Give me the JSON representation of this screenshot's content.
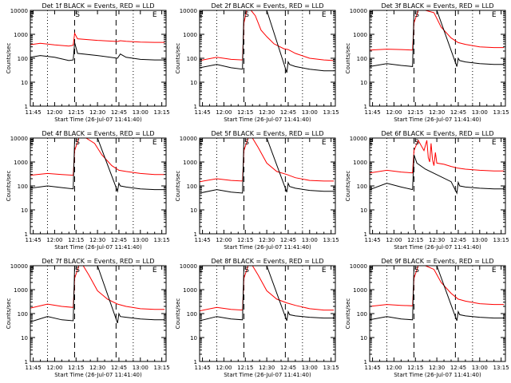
{
  "chart_data": [
    {
      "type": "line",
      "title": "Det 1f BLACK = Events, RED = LLD",
      "ylabel": "Counts/sec",
      "xlabel": "Start Time (26-Jul-07 11:41:40)",
      "y_scale": "log",
      "ylim": [
        1,
        10000
      ],
      "y_ticks": [
        "1",
        "10",
        "100",
        "1000",
        "10000"
      ],
      "x_ticks": [
        "11:45",
        "12:00",
        "12:15",
        "12:30",
        "12:45",
        "13:00",
        "13:15"
      ],
      "markers": [
        "E",
        "S",
        "E"
      ],
      "series": [
        {
          "color": "#ff0000",
          "x": [
            "11:43",
            "11:50",
            "12:00",
            "12:10",
            "12:13",
            "12:14",
            "12:16",
            "12:30",
            "12:44",
            "12:46",
            "12:50",
            "13:00",
            "13:10",
            "13:17"
          ],
          "values": [
            370,
            420,
            360,
            320,
            350,
            1100,
            650,
            560,
            500,
            540,
            510,
            470,
            460,
            460
          ]
        },
        {
          "color": "#000000",
          "x": [
            "11:43",
            "11:50",
            "12:00",
            "12:10",
            "12:13",
            "12:14",
            "12:16",
            "12:30",
            "12:44",
            "12:46",
            "12:50",
            "13:00",
            "13:10",
            "13:17"
          ],
          "values": [
            110,
            130,
            110,
            80,
            85,
            450,
            160,
            130,
            100,
            150,
            110,
            90,
            85,
            85
          ]
        }
      ]
    },
    {
      "type": "line",
      "title": "Det 2f BLACK = Events, RED = LLD",
      "ylabel": "Counts/sec",
      "xlabel": "Start Time (26-Jul-07 11:41:40)",
      "y_scale": "log",
      "ylim": [
        1,
        10000
      ],
      "y_ticks": [
        "1",
        "10",
        "100",
        "1000",
        "10000"
      ],
      "x_ticks": [
        "11:45",
        "12:00",
        "12:15",
        "12:30",
        "12:45",
        "13:00",
        "13:15"
      ],
      "markers": [
        "E",
        "S",
        "E"
      ],
      "series": [
        {
          "color": "#ff0000",
          "x": [
            "11:43",
            "11:55",
            "12:05",
            "12:13",
            "12:14",
            "12:16",
            "12:17",
            "12:19",
            "12:22",
            "12:26",
            "12:30",
            "12:35",
            "12:42",
            "12:45",
            "12:50",
            "13:00",
            "13:10",
            "13:17"
          ],
          "values": [
            80,
            110,
            90,
            85,
            3000,
            10000,
            10000,
            10000,
            6000,
            1500,
            800,
            400,
            250,
            230,
            160,
            100,
            85,
            80
          ]
        },
        {
          "color": "#000000",
          "x": [
            "11:43",
            "11:55",
            "12:05",
            "12:13",
            "12:14",
            "12:30",
            "12:44",
            "12:45",
            "12:46",
            "12:50",
            "13:00",
            "13:10",
            "13:17"
          ],
          "values": [
            40,
            55,
            40,
            35,
            10000,
            10000,
            25,
            70,
            55,
            45,
            35,
            30,
            30
          ]
        }
      ]
    },
    {
      "type": "line",
      "title": "Det 3f BLACK = Events, RED = LLD",
      "ylabel": "Counts/sec",
      "xlabel": "Start Time (26-Jul-07 11:41:40)",
      "y_scale": "log",
      "ylim": [
        1,
        10000
      ],
      "y_ticks": [
        "1",
        "10",
        "100",
        "1000",
        "10000"
      ],
      "x_ticks": [
        "11:45",
        "12:00",
        "12:15",
        "12:30",
        "12:45",
        "13:00",
        "13:15"
      ],
      "markers": [
        "E",
        "S",
        "E"
      ],
      "series": [
        {
          "color": "#ff0000",
          "x": [
            "11:43",
            "11:55",
            "12:05",
            "12:13",
            "12:14",
            "12:17",
            "12:22",
            "12:28",
            "12:33",
            "12:40",
            "12:45",
            "12:50",
            "13:00",
            "13:10",
            "13:17"
          ],
          "values": [
            220,
            240,
            230,
            220,
            3000,
            10000,
            10000,
            8000,
            2000,
            700,
            450,
            380,
            300,
            280,
            280
          ]
        },
        {
          "color": "#000000",
          "x": [
            "11:43",
            "11:55",
            "12:05",
            "12:13",
            "12:14",
            "12:30",
            "12:44",
            "12:45",
            "12:46",
            "12:50",
            "13:00",
            "13:10",
            "13:17"
          ],
          "values": [
            45,
            60,
            50,
            45,
            10000,
            10000,
            45,
            100,
            80,
            70,
            60,
            55,
            55
          ]
        }
      ]
    },
    {
      "type": "line",
      "title": "Det 4f BLACK = Events, RED = LLD",
      "ylabel": "Counts/sec",
      "xlabel": "Start Time (26-Jul-07 11:41:40)",
      "y_scale": "log",
      "ylim": [
        1,
        10000
      ],
      "y_ticks": [
        "1",
        "10",
        "100",
        "1000",
        "10000"
      ],
      "x_ticks": [
        "11:45",
        "12:00",
        "12:15",
        "12:30",
        "12:45",
        "13:00",
        "13:15"
      ],
      "markers": [
        "E",
        "S",
        "E"
      ],
      "series": [
        {
          "color": "#ff0000",
          "x": [
            "11:43",
            "11:55",
            "12:05",
            "12:13",
            "12:14",
            "12:17",
            "12:22",
            "12:28",
            "12:33",
            "12:40",
            "12:45",
            "12:50",
            "13:00",
            "13:10",
            "13:17"
          ],
          "values": [
            280,
            330,
            300,
            280,
            3000,
            10000,
            10000,
            6000,
            2000,
            700,
            450,
            400,
            330,
            300,
            300
          ]
        },
        {
          "color": "#000000",
          "x": [
            "11:43",
            "11:55",
            "12:05",
            "12:13",
            "12:14",
            "12:30",
            "12:44",
            "12:45",
            "12:46",
            "12:50",
            "13:00",
            "13:10",
            "13:17"
          ],
          "values": [
            80,
            100,
            85,
            75,
            10000,
            10000,
            60,
            130,
            100,
            90,
            75,
            70,
            70
          ]
        }
      ]
    },
    {
      "type": "line",
      "title": "Det 5f BLACK = Events, RED = LLD",
      "ylabel": "Counts/sec",
      "xlabel": "Start Time (26-Jul-07 11:41:40)",
      "y_scale": "log",
      "ylim": [
        1,
        10000
      ],
      "y_ticks": [
        "1",
        "10",
        "100",
        "1000",
        "10000"
      ],
      "x_ticks": [
        "11:45",
        "12:00",
        "12:15",
        "12:30",
        "12:45",
        "13:00",
        "13:15"
      ],
      "markers": [
        "E",
        "S",
        "E"
      ],
      "series": [
        {
          "color": "#ff0000",
          "x": [
            "11:43",
            "11:55",
            "12:05",
            "12:13",
            "12:14",
            "12:17",
            "12:20",
            "12:24",
            "12:30",
            "12:37",
            "12:44",
            "12:50",
            "13:00",
            "13:10",
            "13:17"
          ],
          "values": [
            150,
            200,
            170,
            160,
            3000,
            10000,
            10000,
            4000,
            900,
            400,
            300,
            220,
            170,
            160,
            160
          ]
        },
        {
          "color": "#000000",
          "x": [
            "11:43",
            "11:55",
            "12:05",
            "12:13",
            "12:14",
            "12:30",
            "12:44",
            "12:45",
            "12:46",
            "12:50",
            "13:00",
            "13:10",
            "13:17"
          ],
          "values": [
            50,
            70,
            55,
            50,
            10000,
            10000,
            55,
            130,
            95,
            80,
            65,
            60,
            60
          ]
        }
      ]
    },
    {
      "type": "line",
      "title": "Det 6f BLACK = Events, RED = LLD",
      "ylabel": "Counts/sec",
      "xlabel": "Start Time (26-Jul-07 11:41:40)",
      "y_scale": "log",
      "ylim": [
        1,
        10000
      ],
      "y_ticks": [
        "1",
        "10",
        "100",
        "1000",
        "10000"
      ],
      "x_ticks": [
        "11:45",
        "12:00",
        "12:15",
        "12:30",
        "12:45",
        "13:00",
        "13:15"
      ],
      "markers": [
        "E",
        "S",
        "E"
      ],
      "series": [
        {
          "color": "#ff0000",
          "x": [
            "11:43",
            "11:55",
            "12:05",
            "12:13",
            "12:14",
            "12:17",
            "12:21",
            "12:23",
            "12:24",
            "12:25",
            "12:26",
            "12:27",
            "12:28",
            "12:29",
            "12:30",
            "12:35",
            "12:40",
            "12:45",
            "12:50",
            "13:00",
            "13:10",
            "13:17"
          ],
          "values": [
            350,
            450,
            380,
            350,
            3000,
            8000,
            3000,
            8000,
            1500,
            1000,
            6000,
            1200,
            700,
            2500,
            900,
            800,
            650,
            550,
            500,
            450,
            420,
            420
          ]
        },
        {
          "color": "#000000",
          "x": [
            "11:43",
            "11:55",
            "12:05",
            "12:13",
            "12:14",
            "12:16",
            "12:22",
            "12:40",
            "12:44",
            "12:45",
            "12:46",
            "12:50",
            "13:00",
            "13:10",
            "13:17"
          ],
          "values": [
            70,
            130,
            90,
            70,
            2000,
            900,
            500,
            150,
            50,
            140,
            100,
            90,
            80,
            75,
            75
          ]
        }
      ]
    },
    {
      "type": "line",
      "title": "Det 7f BLACK = Events, RED = LLD",
      "ylabel": "Counts/sec",
      "xlabel": "Start Time (26-Jul-07 11:41:40)",
      "y_scale": "log",
      "ylim": [
        1,
        10000
      ],
      "y_ticks": [
        "1",
        "10",
        "100",
        "1000",
        "10000"
      ],
      "x_ticks": [
        "11:45",
        "12:00",
        "12:15",
        "12:30",
        "12:45",
        "13:00",
        "13:15"
      ],
      "markers": [
        "E",
        "S",
        "E"
      ],
      "series": [
        {
          "color": "#ff0000",
          "x": [
            "11:43",
            "11:55",
            "12:05",
            "12:13",
            "12:14",
            "12:17",
            "12:20",
            "12:24",
            "12:30",
            "12:37",
            "12:44",
            "12:50",
            "13:00",
            "13:10",
            "13:17"
          ],
          "values": [
            170,
            250,
            200,
            180,
            3000,
            10000,
            10000,
            4000,
            900,
            400,
            250,
            200,
            160,
            150,
            150
          ]
        },
        {
          "color": "#000000",
          "x": [
            "11:43",
            "11:55",
            "12:05",
            "12:13",
            "12:14",
            "12:30",
            "12:44",
            "12:45",
            "12:46",
            "12:50",
            "13:00",
            "13:10",
            "13:17"
          ],
          "values": [
            45,
            75,
            55,
            50,
            10000,
            10000,
            40,
            100,
            75,
            70,
            60,
            55,
            55
          ]
        }
      ]
    },
    {
      "type": "line",
      "title": "Det 8f BLACK = Events, RED = LLD",
      "ylabel": "Counts/sec",
      "xlabel": "Start Time (26-Jul-07 11:41:40)",
      "y_scale": "log",
      "ylim": [
        1,
        10000
      ],
      "y_ticks": [
        "1",
        "10",
        "100",
        "1000",
        "10000"
      ],
      "x_ticks": [
        "11:45",
        "12:00",
        "12:15",
        "12:30",
        "12:45",
        "13:00",
        "13:15"
      ],
      "markers": [
        "E",
        "S",
        "E"
      ],
      "series": [
        {
          "color": "#ff0000",
          "x": [
            "11:43",
            "11:55",
            "12:05",
            "12:13",
            "12:14",
            "12:17",
            "12:20",
            "12:24",
            "12:30",
            "12:37",
            "12:44",
            "12:50",
            "13:00",
            "13:10",
            "13:17"
          ],
          "values": [
            130,
            180,
            150,
            140,
            3000,
            10000,
            10000,
            4000,
            900,
            400,
            280,
            220,
            160,
            140,
            140
          ]
        },
        {
          "color": "#000000",
          "x": [
            "11:43",
            "11:55",
            "12:05",
            "12:13",
            "12:14",
            "12:30",
            "12:44",
            "12:45",
            "12:46",
            "12:50",
            "13:00",
            "13:10",
            "13:17"
          ],
          "values": [
            50,
            75,
            60,
            55,
            10000,
            10000,
            50,
            120,
            90,
            80,
            70,
            65,
            65
          ]
        }
      ]
    },
    {
      "type": "line",
      "title": "Det 9f BLACK = Events, RED = LLD",
      "ylabel": "Counts/sec",
      "xlabel": "Start Time (26-Jul-07 11:41:40)",
      "y_scale": "log",
      "ylim": [
        1,
        10000
      ],
      "y_ticks": [
        "1",
        "10",
        "100",
        "1000",
        "10000"
      ],
      "x_ticks": [
        "11:45",
        "12:00",
        "12:15",
        "12:30",
        "12:45",
        "13:00",
        "13:15"
      ],
      "markers": [
        "E",
        "S",
        "E"
      ],
      "series": [
        {
          "color": "#ff0000",
          "x": [
            "11:43",
            "11:55",
            "12:05",
            "12:13",
            "12:14",
            "12:17",
            "12:22",
            "12:28",
            "12:33",
            "12:40",
            "12:45",
            "12:50",
            "13:00",
            "13:10",
            "13:17"
          ],
          "values": [
            200,
            240,
            220,
            210,
            3000,
            10000,
            10000,
            7000,
            2000,
            700,
            400,
            330,
            260,
            240,
            240
          ]
        },
        {
          "color": "#000000",
          "x": [
            "11:43",
            "11:55",
            "12:05",
            "12:13",
            "12:14",
            "12:30",
            "12:44",
            "12:45",
            "12:46",
            "12:50",
            "13:00",
            "13:10",
            "13:17"
          ],
          "values": [
            55,
            75,
            60,
            55,
            10000,
            10000,
            50,
            120,
            90,
            80,
            70,
            65,
            65
          ]
        }
      ]
    }
  ]
}
